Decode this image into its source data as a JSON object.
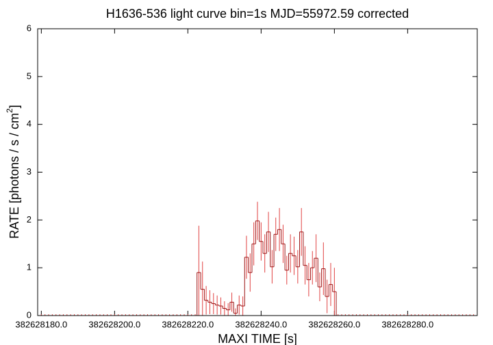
{
  "chart_data": {
    "type": "step_errorbar",
    "title": "H1636-536 light curve bin=1s MJD=55972.59 corrected",
    "xlabel": "MAXI TIME [s]",
    "ylabel": [
      "RATE [photons / s / cm",
      "2",
      "]"
    ],
    "xlim": [
      382628179,
      382628299
    ],
    "ylim": [
      0,
      6
    ],
    "xticks": [
      {
        "value": 382628180,
        "label": "382628180.0"
      },
      {
        "value": 382628200,
        "label": "382628200.0"
      },
      {
        "value": 382628220,
        "label": "382628220.0"
      },
      {
        "value": 382628240,
        "label": "382628240.0"
      },
      {
        "value": 382628260,
        "label": "382628260.0"
      },
      {
        "value": 382628280,
        "label": "382628280.0"
      }
    ],
    "yticks": [
      0,
      1,
      2,
      3,
      4,
      5,
      6
    ],
    "step_color": "#9a1010",
    "error_color": "#e04040",
    "x": [
      382628180,
      382628181,
      382628182,
      382628183,
      382628184,
      382628185,
      382628186,
      382628187,
      382628188,
      382628189,
      382628190,
      382628191,
      382628192,
      382628193,
      382628194,
      382628195,
      382628196,
      382628197,
      382628198,
      382628199,
      382628200,
      382628201,
      382628202,
      382628203,
      382628204,
      382628205,
      382628206,
      382628207,
      382628208,
      382628209,
      382628210,
      382628211,
      382628212,
      382628213,
      382628214,
      382628215,
      382628216,
      382628217,
      382628218,
      382628219,
      382628220,
      382628221,
      382628222,
      382628223,
      382628224,
      382628225,
      382628226,
      382628227,
      382628228,
      382628229,
      382628230,
      382628231,
      382628232,
      382628233,
      382628234,
      382628235,
      382628236,
      382628237,
      382628238,
      382628239,
      382628240,
      382628241,
      382628242,
      382628243,
      382628244,
      382628245,
      382628246,
      382628247,
      382628248,
      382628249,
      382628250,
      382628251,
      382628252,
      382628253,
      382628254,
      382628255,
      382628256,
      382628257,
      382628258,
      382628259,
      382628260,
      382628261,
      382628262,
      382628263,
      382628264,
      382628265,
      382628266,
      382628267,
      382628268,
      382628269,
      382628270,
      382628271,
      382628272,
      382628273,
      382628274,
      382628275,
      382628276,
      382628277,
      382628278,
      382628279,
      382628280,
      382628281,
      382628282,
      382628283,
      382628284,
      382628285,
      382628286,
      382628287,
      382628288,
      382628289,
      382628290,
      382628291,
      382628292,
      382628293,
      382628294,
      382628295,
      382628296,
      382628297,
      382628298
    ],
    "values": [
      0,
      0,
      0,
      0,
      0,
      0,
      0,
      0,
      0,
      0,
      0,
      0,
      0,
      0,
      0,
      0,
      0,
      0,
      0,
      0,
      0,
      0,
      0,
      0,
      0,
      0,
      0,
      0,
      0,
      0,
      0,
      0,
      0,
      0,
      0,
      0,
      0,
      0,
      0,
      0,
      0,
      0,
      0,
      0.9,
      0.55,
      0.32,
      0.28,
      0.25,
      0.22,
      0.2,
      0.15,
      0.12,
      0.28,
      0.05,
      0.22,
      0.2,
      1.22,
      0.9,
      1.5,
      1.98,
      1.55,
      1.3,
      1.75,
      1.02,
      1.7,
      1.8,
      1.5,
      0.95,
      1.3,
      1.25,
      1.02,
      1.75,
      1.05,
      0.75,
      1.0,
      1.2,
      0.6,
      0.98,
      0.4,
      0.65,
      0.5,
      0,
      0,
      0,
      0,
      0,
      0,
      0,
      0,
      0,
      0,
      0,
      0,
      0,
      0,
      0,
      0,
      0,
      0,
      0,
      0,
      0,
      0,
      0,
      0,
      0,
      0,
      0,
      0,
      0,
      0,
      0,
      0,
      0,
      0,
      0,
      0,
      0,
      0
    ],
    "errors": [
      0,
      0,
      0,
      0,
      0,
      0,
      0,
      0,
      0,
      0,
      0,
      0,
      0,
      0,
      0,
      0,
      0,
      0,
      0,
      0,
      0,
      0,
      0,
      0,
      0,
      0,
      0,
      0,
      0,
      0,
      0,
      0,
      0,
      0,
      0,
      0,
      0,
      0,
      0,
      0,
      0,
      0,
      0,
      0.98,
      0.58,
      0.3,
      0.25,
      0.22,
      0.2,
      0.18,
      0.15,
      0.14,
      0.2,
      0.1,
      0.2,
      0.2,
      0.45,
      0.4,
      0.45,
      0.4,
      0.4,
      0.4,
      0.42,
      0.35,
      0.35,
      0.45,
      0.4,
      0.3,
      0.4,
      0.4,
      0.35,
      0.5,
      0.4,
      0.35,
      0.35,
      0.5,
      0.3,
      0.55,
      0.35,
      0.45,
      0.5,
      0,
      0,
      0,
      0,
      0,
      0,
      0,
      0,
      0,
      0,
      0,
      0,
      0,
      0,
      0,
      0,
      0,
      0,
      0,
      0,
      0,
      0,
      0,
      0,
      0,
      0,
      0,
      0,
      0,
      0,
      0,
      0,
      0,
      0,
      0,
      0,
      0,
      0
    ]
  }
}
